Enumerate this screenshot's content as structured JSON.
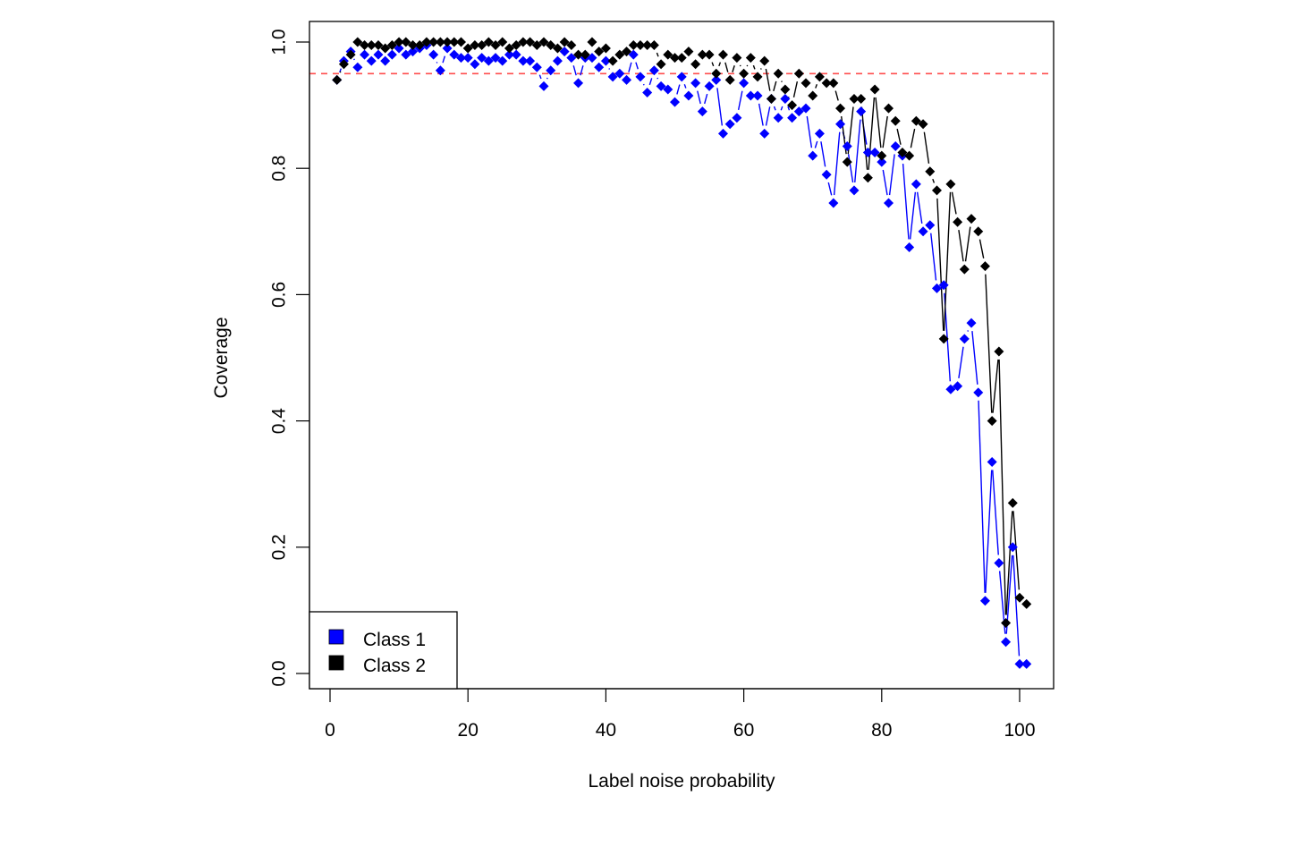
{
  "chart_data": {
    "type": "line",
    "title": "",
    "xlabel": "Label noise probability",
    "ylabel": "Coverage",
    "xlim": [
      0,
      100
    ],
    "ylim": [
      0,
      1.0
    ],
    "x_ticks": [
      0,
      20,
      40,
      60,
      80,
      100
    ],
    "x_tick_labels": [
      "0",
      "20",
      "40",
      "60",
      "80",
      "100"
    ],
    "y_ticks": [
      0.0,
      0.2,
      0.4,
      0.6,
      0.8,
      1.0
    ],
    "y_tick_labels": [
      "0.0",
      "0.2",
      "0.4",
      "0.6",
      "0.8",
      "1.0"
    ],
    "grid": false,
    "legend_position": "bottom-left",
    "reference_line": {
      "y": 0.95,
      "color": "#ff4d4d",
      "style": "dashed"
    },
    "x": [
      1,
      2,
      3,
      4,
      5,
      6,
      7,
      8,
      9,
      10,
      11,
      12,
      13,
      14,
      15,
      16,
      17,
      18,
      19,
      20,
      21,
      22,
      23,
      24,
      25,
      26,
      27,
      28,
      29,
      30,
      31,
      32,
      33,
      34,
      35,
      36,
      37,
      38,
      39,
      40,
      41,
      42,
      43,
      44,
      45,
      46,
      47,
      48,
      49,
      50,
      51,
      52,
      53,
      54,
      55,
      56,
      57,
      58,
      59,
      60,
      61,
      62,
      63,
      64,
      65,
      66,
      67,
      68,
      69,
      70,
      71,
      72,
      73,
      74,
      75,
      76,
      77,
      78,
      79,
      80,
      81,
      82,
      83,
      84,
      85,
      86,
      87,
      88,
      89,
      90,
      91,
      92,
      93,
      94,
      95,
      96,
      97,
      98,
      99,
      100,
      101
    ],
    "series": [
      {
        "name": "Class 1",
        "color": "#0000ff",
        "marker": "diamond",
        "values": [
          0.94,
          0.97,
          0.985,
          0.96,
          0.98,
          0.97,
          0.98,
          0.97,
          0.98,
          0.99,
          0.98,
          0.985,
          0.99,
          0.995,
          0.98,
          0.955,
          0.99,
          0.98,
          0.975,
          0.975,
          0.965,
          0.975,
          0.97,
          0.975,
          0.97,
          0.98,
          0.98,
          0.97,
          0.97,
          0.96,
          0.93,
          0.955,
          0.97,
          0.985,
          0.975,
          0.935,
          0.975,
          0.975,
          0.96,
          0.97,
          0.945,
          0.95,
          0.94,
          0.98,
          0.945,
          0.92,
          0.955,
          0.93,
          0.925,
          0.905,
          0.945,
          0.915,
          0.935,
          0.89,
          0.93,
          0.94,
          0.855,
          0.87,
          0.88,
          0.935,
          0.915,
          0.915,
          0.855,
          0.91,
          0.88,
          0.91,
          0.88,
          0.89,
          0.895,
          0.82,
          0.855,
          0.79,
          0.745,
          0.87,
          0.835,
          0.765,
          0.89,
          0.825,
          0.825,
          0.81,
          0.745,
          0.835,
          0.82,
          0.675,
          0.775,
          0.7,
          0.71,
          0.61,
          0.615,
          0.45,
          0.455,
          0.53,
          0.555,
          0.445,
          0.115,
          0.335,
          0.175,
          0.05,
          0.2,
          0.015,
          0.015
        ]
      },
      {
        "name": "Class 2",
        "color": "#000000",
        "marker": "diamond",
        "values": [
          0.94,
          0.965,
          0.98,
          1.0,
          0.995,
          0.995,
          0.995,
          0.99,
          0.995,
          1.0,
          1.0,
          0.995,
          0.995,
          1.0,
          1.0,
          1.0,
          1.0,
          1.0,
          1.0,
          0.99,
          0.995,
          0.995,
          1.0,
          0.995,
          1.0,
          0.99,
          0.995,
          1.0,
          1.0,
          0.995,
          1.0,
          0.995,
          0.99,
          1.0,
          0.995,
          0.98,
          0.98,
          1.0,
          0.985,
          0.99,
          0.97,
          0.98,
          0.985,
          0.995,
          0.995,
          0.995,
          0.995,
          0.965,
          0.98,
          0.975,
          0.975,
          0.985,
          0.965,
          0.98,
          0.98,
          0.95,
          0.98,
          0.94,
          0.975,
          0.95,
          0.975,
          0.945,
          0.97,
          0.91,
          0.95,
          0.925,
          0.9,
          0.95,
          0.935,
          0.915,
          0.945,
          0.935,
          0.935,
          0.895,
          0.81,
          0.91,
          0.91,
          0.785,
          0.925,
          0.82,
          0.895,
          0.875,
          0.825,
          0.82,
          0.875,
          0.87,
          0.795,
          0.765,
          0.53,
          0.775,
          0.715,
          0.64,
          0.72,
          0.7,
          0.645,
          0.4,
          0.51,
          0.08,
          0.27,
          0.12,
          0.11
        ]
      }
    ]
  },
  "legend": {
    "items": [
      {
        "label": "Class 1",
        "color": "#0000ff"
      },
      {
        "label": "Class 2",
        "color": "#000000"
      }
    ]
  }
}
